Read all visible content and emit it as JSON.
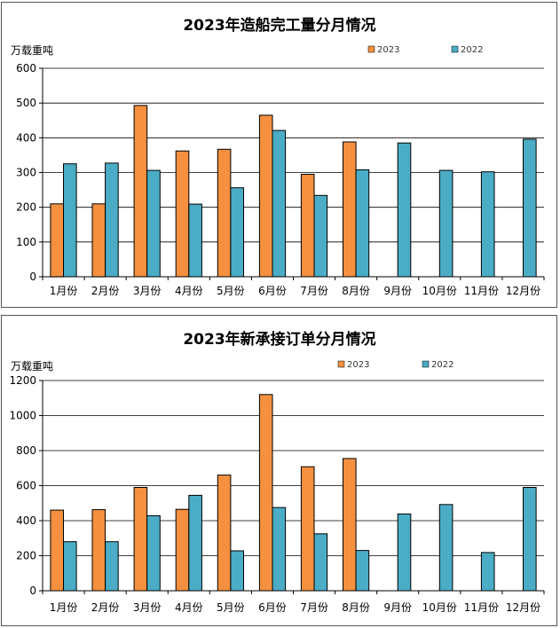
{
  "colors": {
    "s2023": "#F4903F",
    "s2022": "#4BACC6",
    "grid": "#000000",
    "bar_stroke": "#000000"
  },
  "chart_data": [
    {
      "type": "bar",
      "title": "2023年造船完工量分月情况",
      "ylabel": "万载重吨",
      "xlabel": "",
      "ylim": [
        0,
        600
      ],
      "yticks": [
        "0",
        "100",
        "200",
        "300",
        "400",
        "500",
        "600"
      ],
      "grid": true,
      "legend": "top",
      "categories": [
        "1月份",
        "2月份",
        "3月份",
        "4月份",
        "5月份",
        "6月份",
        "7月份",
        "8月份",
        "9月份",
        "10月份",
        "11月份",
        "12月份"
      ],
      "series": [
        {
          "name": "2023",
          "values": [
            210,
            210,
            493,
            362,
            367,
            465,
            295,
            388,
            null,
            null,
            null,
            null
          ]
        },
        {
          "name": "2022",
          "values": [
            325,
            327,
            306,
            209,
            256,
            421,
            234,
            308,
            385,
            306,
            302,
            396
          ]
        }
      ]
    },
    {
      "type": "bar",
      "title": "2023年新承接订单分月情况",
      "ylabel": "万载重吨",
      "xlabel": "",
      "ylim": [
        0,
        1200
      ],
      "yticks": [
        "0",
        "200",
        "400",
        "600",
        "800",
        "1000",
        "1200"
      ],
      "grid": true,
      "legend": "top",
      "categories": [
        "1月份",
        "2月份",
        "3月份",
        "4月份",
        "5月份",
        "6月份",
        "7月份",
        "8月份",
        "9月份",
        "10月份",
        "11月份",
        "12月份"
      ],
      "series": [
        {
          "name": "2023",
          "values": [
            460,
            463,
            590,
            465,
            660,
            1120,
            708,
            755,
            null,
            null,
            null,
            null
          ]
        },
        {
          "name": "2022",
          "values": [
            280,
            280,
            428,
            545,
            228,
            475,
            325,
            230,
            438,
            492,
            218,
            590
          ]
        }
      ]
    }
  ]
}
